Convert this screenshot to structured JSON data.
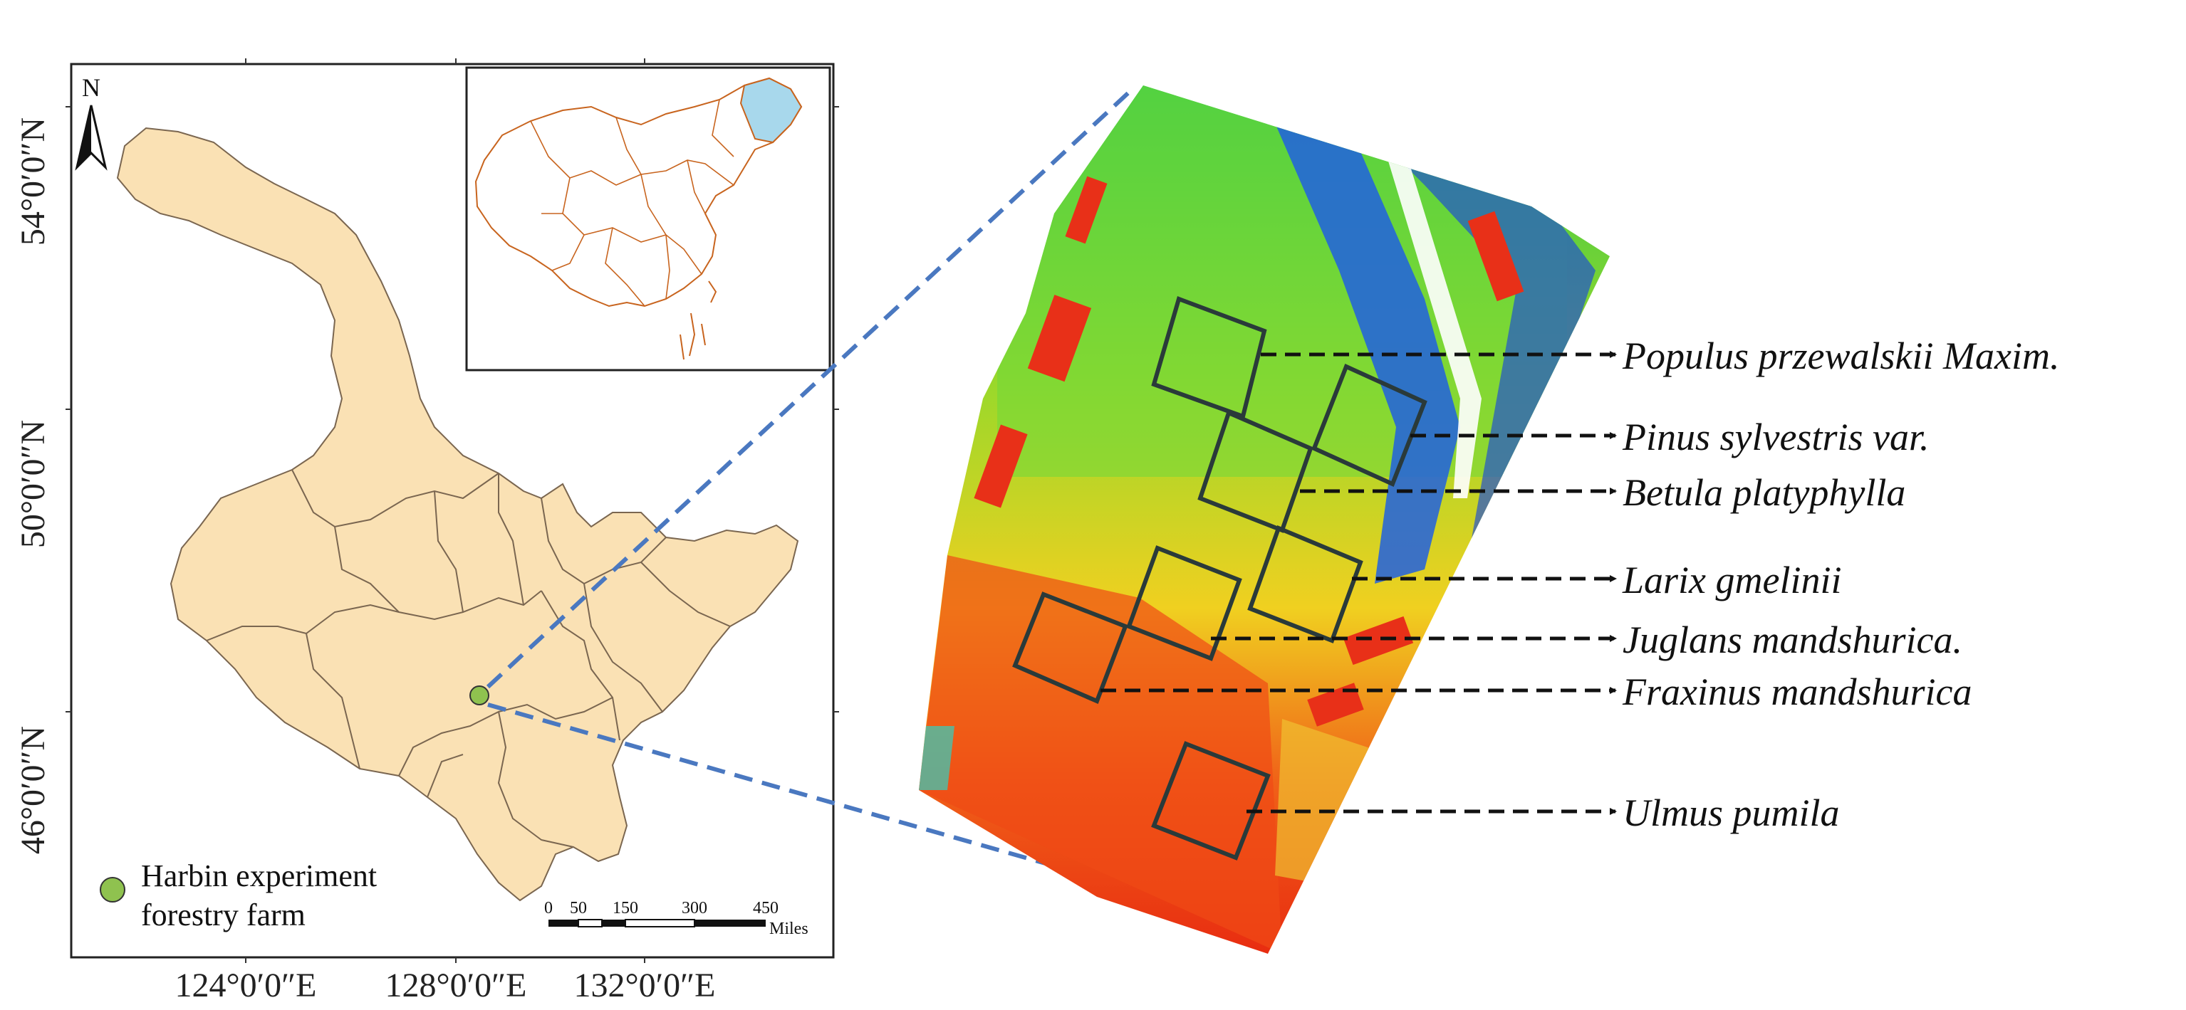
{
  "map": {
    "north_label": "N",
    "latitude_labels": [
      "54°0′0″N",
      "50°0′0″N",
      "46°0′0″N"
    ],
    "longitude_labels": [
      "124°0′0″E",
      "128°0′0″E",
      "132°0′0″E"
    ],
    "legend": {
      "line1": "Harbin experiment",
      "line2": "forestry farm",
      "marker_color": "#8fc24f"
    },
    "scale_bar": {
      "ticks": [
        "0",
        "50",
        "150",
        "300",
        "450"
      ],
      "unit": "Miles"
    },
    "colors": {
      "province_fill": "#fae1b4",
      "province_border": "#7a6650",
      "inset_border": "#c8641e",
      "highlight": "#a8d8ec",
      "connector": "#4a78c0"
    }
  },
  "species": [
    "Populus przewalskii Maxim.",
    "Pinus sylvestris var.",
    "Betula platyphylla",
    "Larix gmelinii",
    "Juglans mandshurica.",
    "Fraxinus mandshurica",
    "Ulmus pumila"
  ]
}
